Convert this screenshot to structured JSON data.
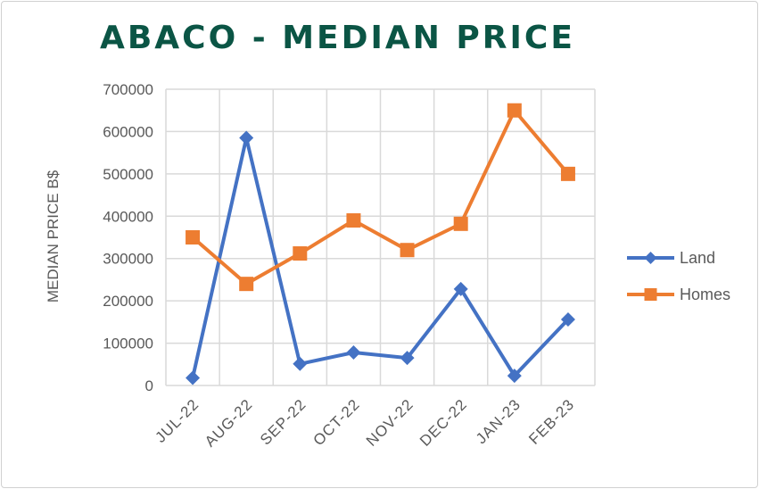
{
  "chart_data": {
    "type": "line",
    "title": "ABACO - MEDIAN PRICE",
    "xlabel": "",
    "ylabel": "MEDIAN PRICE B$",
    "ylim": [
      0,
      700000
    ],
    "yticks": [
      "0",
      "100000",
      "200000",
      "300000",
      "400000",
      "500000",
      "600000",
      "700000"
    ],
    "categories": [
      "JUL-22",
      "AUG-22",
      "SEP-22",
      "OCT-22",
      "NOV-22",
      "DEC-22",
      "JAN-23",
      "FEB-23"
    ],
    "grid": true,
    "legend_position": "right",
    "series": [
      {
        "name": "Land",
        "color": "#4472C4",
        "marker": "diamond",
        "values": [
          18000,
          585000,
          51000,
          78000,
          65000,
          228000,
          23000,
          156000
        ]
      },
      {
        "name": "Homes",
        "color": "#ED7D31",
        "marker": "square",
        "values": [
          350000,
          240000,
          312000,
          390000,
          320000,
          382000,
          650000,
          500000
        ]
      }
    ]
  }
}
